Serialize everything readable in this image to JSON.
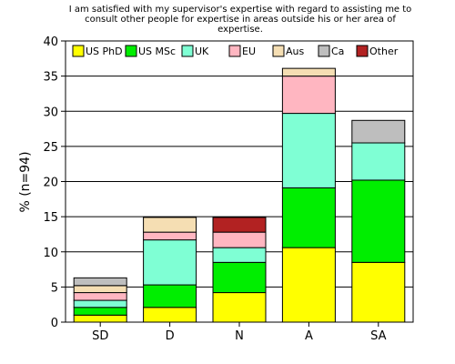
{
  "chart_data": {
    "type": "bar",
    "stacked": true,
    "title_lines": [
      "I am satisfied with my supervisor's expertise with regard to assisting me to",
      "consult other people for expertise in areas outside his or her area of",
      "expertise."
    ],
    "xlabel": "",
    "ylabel": "% (n=94)",
    "ylim": [
      0,
      40
    ],
    "yticks": [
      "0",
      "5",
      "10",
      "15",
      "20",
      "25",
      "30",
      "35",
      "40"
    ],
    "grid": "horizontal",
    "legend_position": "top-left",
    "categories": [
      "SD",
      "D",
      "N",
      "A",
      "SA"
    ],
    "series": [
      {
        "name": "US PhD",
        "color": "#ffff00",
        "values": [
          1.0,
          2.1,
          4.2,
          10.6,
          8.5
        ]
      },
      {
        "name": "US MSc",
        "color": "#00ee00",
        "values": [
          1.1,
          3.2,
          4.3,
          8.5,
          11.7
        ]
      },
      {
        "name": "UK",
        "color": "#7fffd4",
        "values": [
          1.0,
          6.4,
          2.1,
          10.6,
          5.3
        ]
      },
      {
        "name": "EU",
        "color": "#ffb6c1",
        "values": [
          1.1,
          1.1,
          2.2,
          5.3,
          0
        ]
      },
      {
        "name": "Aus",
        "color": "#f5deb3",
        "values": [
          1.0,
          2.1,
          0,
          1.1,
          0
        ]
      },
      {
        "name": "Ca",
        "color": "#bebebe",
        "values": [
          1.1,
          0,
          0,
          0,
          3.2
        ]
      },
      {
        "name": "Other",
        "color": "#b22222",
        "values": [
          0,
          0,
          2.1,
          0,
          0
        ]
      }
    ]
  }
}
